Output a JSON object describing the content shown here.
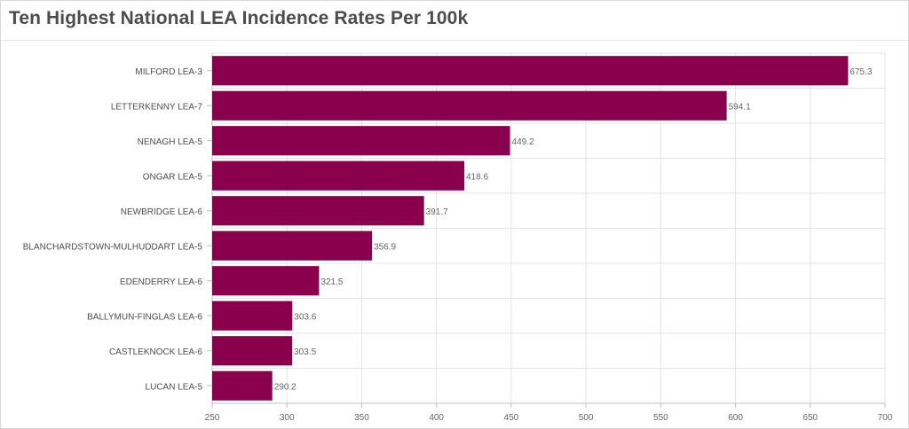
{
  "title": "Ten Highest National LEA Incidence Rates Per 100k",
  "colors": {
    "bar": "#8b004c",
    "grid": "#e3e3e3",
    "axis": "#bfbfbf"
  },
  "chart_data": {
    "type": "bar",
    "orientation": "horizontal",
    "title": "Ten Highest National LEA Incidence Rates Per 100k",
    "xlabel": "",
    "ylabel": "",
    "categories": [
      "MILFORD LEA-3",
      "LETTERKENNY LEA-7",
      "NENAGH LEA-5",
      "ONGAR LEA-5",
      "NEWBRIDGE LEA-6",
      "BLANCHARDSTOWN-MULHUDDART LEA-5",
      "EDENDERRY LEA-6",
      "BALLYMUN-FINGLAS LEA-6",
      "CASTLEKNOCK LEA-6",
      "LUCAN LEA-5"
    ],
    "values": [
      675.3,
      594.1,
      449.2,
      418.6,
      391.7,
      356.9,
      321.5,
      303.6,
      303.5,
      290.2
    ],
    "value_labels": [
      "675.3",
      "594.1",
      "449.2",
      "418.6",
      "391.7",
      "356.9",
      "321.5",
      "303.6",
      "303.5",
      "290.2"
    ],
    "xlim": [
      250,
      700
    ],
    "xticks": [
      "250",
      "300",
      "350",
      "400",
      "450",
      "500",
      "550",
      "600",
      "650",
      "700"
    ],
    "grid": true,
    "legend": "none"
  }
}
